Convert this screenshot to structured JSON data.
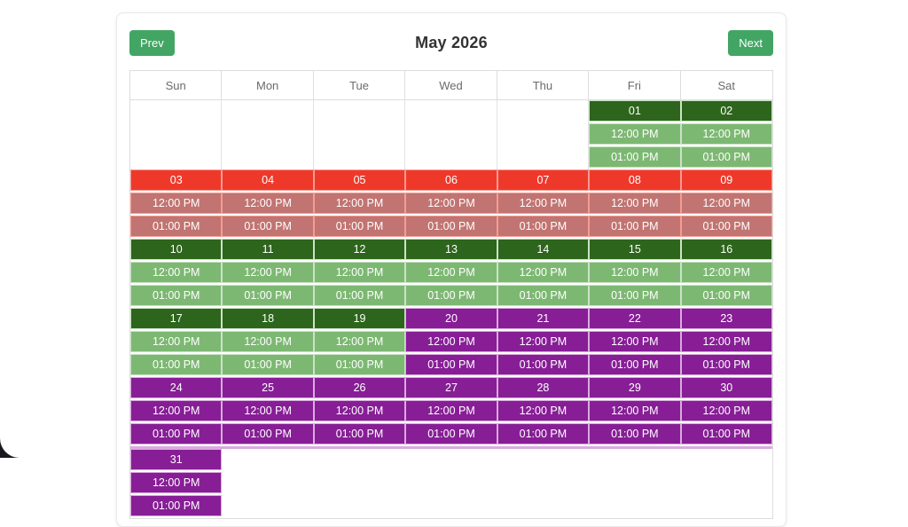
{
  "page": {
    "corner_color": "#17191c"
  },
  "calendar": {
    "title": "May 2026",
    "prev_label": "Prev",
    "next_label": "Next",
    "day_headers": [
      "Sun",
      "Mon",
      "Tue",
      "Wed",
      "Thu",
      "Fri",
      "Sat"
    ],
    "slot_times": [
      "12:00 PM",
      "01:00 PM"
    ],
    "colors": {
      "button_green": "#42a564",
      "green_header": "#2d651c",
      "green_slot": "#7db873",
      "green_border": "#cbe3c6",
      "red_header": "#ee392a",
      "red_slot": "#c17471",
      "red_border": "#f59c93",
      "purple_header": "#871e96",
      "purple_slot": "#871e96",
      "purple_border": "#d9abde",
      "grid_border": "#dddddd",
      "corner": "#17191c"
    },
    "weeks": [
      {
        "days": [
          {
            "date": "",
            "status": "empty"
          },
          {
            "date": "",
            "status": "empty"
          },
          {
            "date": "",
            "status": "empty"
          },
          {
            "date": "",
            "status": "empty"
          },
          {
            "date": "",
            "status": "empty"
          },
          {
            "date": "01",
            "status": "green"
          },
          {
            "date": "02",
            "status": "green"
          }
        ]
      },
      {
        "days": [
          {
            "date": "03",
            "status": "red"
          },
          {
            "date": "04",
            "status": "red"
          },
          {
            "date": "05",
            "status": "red"
          },
          {
            "date": "06",
            "status": "red"
          },
          {
            "date": "07",
            "status": "red"
          },
          {
            "date": "08",
            "status": "red"
          },
          {
            "date": "09",
            "status": "red"
          }
        ]
      },
      {
        "days": [
          {
            "date": "10",
            "status": "green"
          },
          {
            "date": "11",
            "status": "green"
          },
          {
            "date": "12",
            "status": "green"
          },
          {
            "date": "13",
            "status": "green"
          },
          {
            "date": "14",
            "status": "green"
          },
          {
            "date": "15",
            "status": "green"
          },
          {
            "date": "16",
            "status": "green"
          }
        ]
      },
      {
        "days": [
          {
            "date": "17",
            "status": "green"
          },
          {
            "date": "18",
            "status": "green"
          },
          {
            "date": "19",
            "status": "green"
          },
          {
            "date": "20",
            "status": "purple"
          },
          {
            "date": "21",
            "status": "purple"
          },
          {
            "date": "22",
            "status": "purple"
          },
          {
            "date": "23",
            "status": "purple"
          }
        ]
      },
      {
        "days": [
          {
            "date": "24",
            "status": "purple"
          },
          {
            "date": "25",
            "status": "purple"
          },
          {
            "date": "26",
            "status": "purple"
          },
          {
            "date": "27",
            "status": "purple"
          },
          {
            "date": "28",
            "status": "purple"
          },
          {
            "date": "29",
            "status": "purple"
          },
          {
            "date": "30",
            "status": "purple"
          }
        ]
      },
      {
        "overflow": true,
        "days": [
          {
            "date": "31",
            "status": "purple"
          },
          {
            "date": "",
            "status": "blank"
          },
          {
            "date": "",
            "status": "blank"
          },
          {
            "date": "",
            "status": "blank"
          },
          {
            "date": "",
            "status": "blank"
          },
          {
            "date": "",
            "status": "blank"
          },
          {
            "date": "",
            "status": "blank"
          }
        ]
      }
    ]
  }
}
